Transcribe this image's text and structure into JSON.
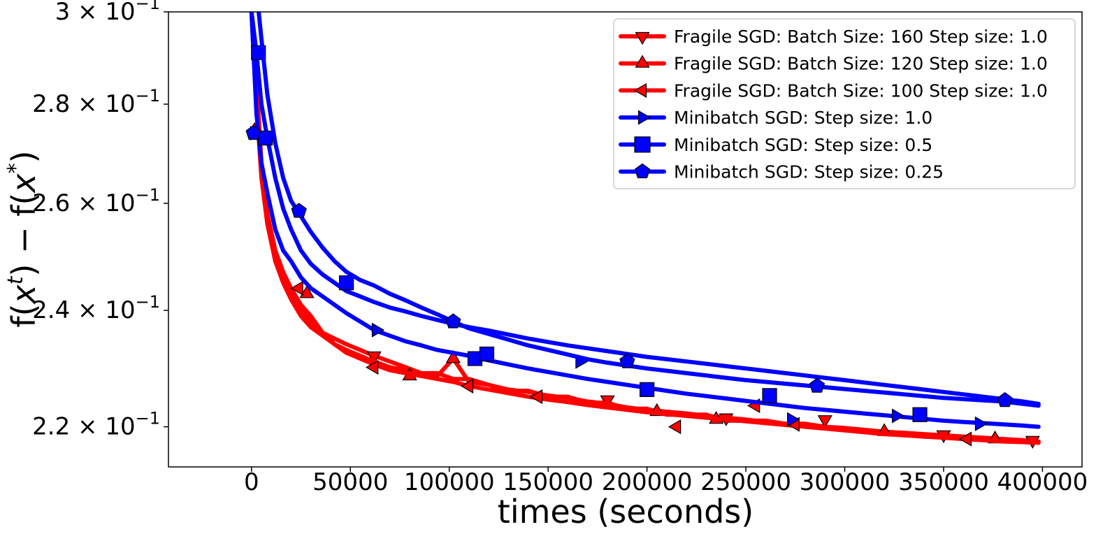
{
  "chart_data": {
    "type": "line",
    "title": "",
    "xlabel": "times (seconds)",
    "ylabel": "f(x^t) - f(x^*)",
    "ylabel_parts": {
      "f1": "f(",
      "x1": "x",
      "t": "t",
      "mid": ") − f(",
      "x2": "x",
      "star": "*",
      "close": ")"
    },
    "y_scale": "log",
    "xlim": [
      -42000,
      420000
    ],
    "ylim": [
      0.2135,
      0.3
    ],
    "x_ticks": [
      0,
      50000,
      100000,
      150000,
      200000,
      250000,
      300000,
      350000,
      400000
    ],
    "x_tick_labels": [
      "0",
      "50000",
      "100000",
      "150000",
      "200000",
      "250000",
      "300000",
      "350000",
      "400000"
    ],
    "y_ticks": [
      {
        "value": 0.3,
        "mant": "3",
        "times": "×",
        "base": "10",
        "exp": "−1"
      },
      {
        "value": 0.28,
        "mant": "2.8",
        "times": "×",
        "base": "10",
        "exp": "−1"
      },
      {
        "value": 0.26,
        "mant": "2.6",
        "times": "×",
        "base": "10",
        "exp": "−1"
      },
      {
        "value": 0.24,
        "mant": "2.4",
        "times": "×",
        "base": "10",
        "exp": "−1"
      },
      {
        "value": 0.22,
        "mant": "2.2",
        "times": "×",
        "base": "10",
        "exp": "−1"
      }
    ],
    "grid": false,
    "legend_position": "top-right",
    "series": [
      {
        "name": "Fragile SGD: Batch Size: 160 Step size: 1.0",
        "color": "#ff0000",
        "marker": "triangle-down",
        "x": [
          0,
          2500,
          5000,
          8000,
          12000,
          16000,
          20000,
          25000,
          30000,
          36000,
          42000,
          48000,
          55000,
          62000,
          70000,
          78000,
          86000,
          94000,
          102000,
          110000,
          120000,
          130000,
          140000,
          150000,
          160000,
          170000,
          180000,
          190000,
          200000,
          210000,
          220000,
          230000,
          240000,
          250000,
          260000,
          270000,
          280000,
          290000,
          300000,
          310000,
          320000,
          330000,
          340000,
          350000,
          360000,
          370000,
          380000,
          390000,
          398000
        ],
        "values": [
          0.3,
          0.285,
          0.268,
          0.258,
          0.251,
          0.247,
          0.244,
          0.241,
          0.239,
          0.236,
          0.235,
          0.234,
          0.233,
          0.232,
          0.231,
          0.23,
          0.229,
          0.229,
          0.228,
          0.228,
          0.227,
          0.226,
          0.226,
          0.225,
          0.225,
          0.224,
          0.224,
          0.223,
          0.223,
          0.222,
          0.222,
          0.222,
          0.221,
          0.221,
          0.221,
          0.2205,
          0.2205,
          0.22,
          0.2198,
          0.2195,
          0.2192,
          0.219,
          0.2188,
          0.2186,
          0.2184,
          0.2182,
          0.218,
          0.2178,
          0.2176
        ],
        "marker_points": [
          [
            62000,
            0.232
          ],
          [
            180000,
            0.2245
          ],
          [
            240000,
            0.2215
          ],
          [
            290000,
            0.2212
          ],
          [
            350000,
            0.2187
          ],
          [
            395000,
            0.2178
          ]
        ]
      },
      {
        "name": "Fragile SGD: Batch Size: 120 Step size: 1.0",
        "color": "#ff0000",
        "marker": "triangle-up",
        "x": [
          0,
          2500,
          5000,
          8000,
          12000,
          16000,
          20000,
          25000,
          30000,
          36000,
          42000,
          48000,
          55000,
          62000,
          70000,
          78000,
          86000,
          94000,
          102000,
          110000,
          120000,
          130000,
          140000,
          150000,
          160000,
          170000,
          180000,
          190000,
          200000,
          210000,
          220000,
          230000,
          240000,
          250000,
          260000,
          270000,
          280000,
          290000,
          300000,
          310000,
          320000,
          330000,
          340000,
          350000,
          360000,
          370000,
          380000,
          390000,
          398000
        ],
        "values": [
          0.3,
          0.282,
          0.266,
          0.257,
          0.25,
          0.246,
          0.243,
          0.24,
          0.238,
          0.236,
          0.234,
          0.233,
          0.232,
          0.231,
          0.23,
          0.2295,
          0.229,
          0.2285,
          0.2315,
          0.2275,
          0.227,
          0.2262,
          0.2258,
          0.2252,
          0.2248,
          0.2242,
          0.2238,
          0.2232,
          0.2228,
          0.2225,
          0.2222,
          0.2218,
          0.2215,
          0.2212,
          0.2208,
          0.2205,
          0.2202,
          0.2199,
          0.2196,
          0.2193,
          0.219,
          0.2188,
          0.2186,
          0.2184,
          0.2182,
          0.218,
          0.2178,
          0.2176,
          0.2174
        ],
        "marker_points": [
          [
            1500,
            0.2745
          ],
          [
            28000,
            0.243
          ],
          [
            80000,
            0.2285
          ],
          [
            102000,
            0.2315
          ],
          [
            205000,
            0.2225
          ],
          [
            235000,
            0.2212
          ],
          [
            320000,
            0.2192
          ],
          [
            376000,
            0.218
          ]
        ]
      },
      {
        "name": "Fragile SGD: Batch Size: 100 Step size: 1.0",
        "color": "#ff0000",
        "marker": "triangle-left",
        "x": [
          0,
          2500,
          5000,
          8000,
          12000,
          16000,
          20000,
          25000,
          30000,
          36000,
          42000,
          48000,
          55000,
          62000,
          70000,
          78000,
          86000,
          94000,
          102000,
          110000,
          120000,
          130000,
          140000,
          150000,
          160000,
          170000,
          180000,
          190000,
          200000,
          210000,
          220000,
          230000,
          240000,
          250000,
          260000,
          270000,
          280000,
          290000,
          300000,
          310000,
          320000,
          330000,
          340000,
          350000,
          360000,
          370000,
          380000,
          390000,
          398000
        ],
        "values": [
          0.3,
          0.28,
          0.265,
          0.256,
          0.249,
          0.245,
          0.242,
          0.239,
          0.237,
          0.2355,
          0.234,
          0.2325,
          0.2315,
          0.2305,
          0.2295,
          0.229,
          0.2285,
          0.228,
          0.2275,
          0.2268,
          0.2262,
          0.2256,
          0.225,
          0.2245,
          0.2241,
          0.2236,
          0.2232,
          0.2228,
          0.2224,
          0.2221,
          0.2218,
          0.2215,
          0.2212,
          0.2209,
          0.2206,
          0.2203,
          0.22,
          0.2197,
          0.2194,
          0.2191,
          0.2188,
          0.2186,
          0.2184,
          0.2182,
          0.218,
          0.2178,
          0.2176,
          0.2175,
          0.2174
        ],
        "marker_points": [
          [
            24000,
            0.244
          ],
          [
            62000,
            0.23
          ],
          [
            110000,
            0.2268
          ],
          [
            145000,
            0.225
          ],
          [
            215000,
            0.22
          ],
          [
            255000,
            0.2235
          ],
          [
            275000,
            0.2204
          ],
          [
            362000,
            0.218
          ]
        ]
      },
      {
        "name": "Minibatch SGD: Step size: 1.0",
        "color": "#0000ff",
        "marker": "triangle-right",
        "x": [
          0,
          2500,
          5000,
          8000,
          12000,
          16000,
          20000,
          25000,
          30000,
          36000,
          42000,
          48000,
          55000,
          62000,
          70000,
          78000,
          86000,
          94000,
          102000,
          110000,
          120000,
          130000,
          140000,
          150000,
          160000,
          170000,
          180000,
          190000,
          200000,
          210000,
          220000,
          230000,
          240000,
          250000,
          260000,
          270000,
          280000,
          290000,
          300000,
          310000,
          320000,
          330000,
          340000,
          350000,
          360000,
          370000,
          380000,
          390000,
          398000
        ],
        "values": [
          0.3,
          0.278,
          0.268,
          0.262,
          0.255,
          0.251,
          0.249,
          0.246,
          0.244,
          0.2425,
          0.241,
          0.2395,
          0.238,
          0.2365,
          0.2355,
          0.2345,
          0.2338,
          0.233,
          0.2325,
          0.232,
          0.2312,
          0.2305,
          0.2298,
          0.2292,
          0.2286,
          0.228,
          0.2275,
          0.227,
          0.2265,
          0.226,
          0.2255,
          0.2251,
          0.2247,
          0.2243,
          0.2239,
          0.2235,
          0.2231,
          0.2228,
          0.2225,
          0.2222,
          0.2219,
          0.2216,
          0.2213,
          0.221,
          0.2208,
          0.2206,
          0.2204,
          0.2202,
          0.22
        ],
        "marker_points": [
          [
            1500,
            0.274
          ],
          [
            63000,
            0.2365
          ],
          [
            166000,
            0.231
          ],
          [
            273000,
            0.2212
          ],
          [
            326000,
            0.2218
          ],
          [
            368000,
            0.2205
          ]
        ]
      },
      {
        "name": "Minibatch SGD: Step size: 0.5",
        "color": "#0000ff",
        "marker": "square",
        "x": [
          0,
          2500,
          5000,
          8000,
          12000,
          16000,
          20000,
          25000,
          30000,
          36000,
          42000,
          48000,
          55000,
          62000,
          70000,
          78000,
          86000,
          94000,
          102000,
          110000,
          120000,
          130000,
          140000,
          150000,
          160000,
          170000,
          180000,
          190000,
          200000,
          210000,
          220000,
          230000,
          240000,
          250000,
          260000,
          270000,
          280000,
          290000,
          300000,
          310000,
          320000,
          330000,
          340000,
          350000,
          360000,
          370000,
          380000,
          390000,
          398000
        ],
        "values": [
          0.3,
          0.291,
          0.28,
          0.273,
          0.265,
          0.259,
          0.255,
          0.251,
          0.2485,
          0.2465,
          0.245,
          0.2435,
          0.2425,
          0.2415,
          0.2405,
          0.2398,
          0.239,
          0.2383,
          0.2376,
          0.237,
          0.2364,
          0.2357,
          0.235,
          0.2344,
          0.2338,
          0.2333,
          0.2328,
          0.2323,
          0.2318,
          0.2314,
          0.231,
          0.2306,
          0.2302,
          0.2298,
          0.2294,
          0.229,
          0.2286,
          0.2282,
          0.2278,
          0.2274,
          0.227,
          0.2266,
          0.2262,
          0.2258,
          0.2254,
          0.225,
          0.2246,
          0.2242,
          0.2238
        ],
        "marker_points": [
          [
            3500,
            0.291
          ],
          [
            7000,
            0.273
          ],
          [
            48000,
            0.245
          ],
          [
            113000,
            0.2315
          ],
          [
            119000,
            0.2323
          ],
          [
            200000,
            0.2262
          ],
          [
            262000,
            0.2252
          ],
          [
            338000,
            0.222
          ]
        ]
      },
      {
        "name": "Minibatch SGD: Step size: 0.25",
        "color": "#0000ff",
        "marker": "pentagon",
        "x": [
          0,
          2500,
          5000,
          8000,
          12000,
          16000,
          20000,
          25000,
          30000,
          36000,
          42000,
          48000,
          55000,
          62000,
          70000,
          78000,
          86000,
          94000,
          102000,
          110000,
          120000,
          130000,
          140000,
          150000,
          160000,
          170000,
          180000,
          190000,
          200000,
          210000,
          220000,
          230000,
          240000,
          250000,
          260000,
          270000,
          280000,
          290000,
          300000,
          310000,
          320000,
          330000,
          340000,
          350000,
          360000,
          370000,
          380000,
          390000,
          398000
        ],
        "values": [
          0.3,
          0.305,
          0.294,
          0.282,
          0.272,
          0.265,
          0.2605,
          0.2575,
          0.2545,
          0.2515,
          0.249,
          0.247,
          0.2455,
          0.2445,
          0.243,
          0.2418,
          0.2405,
          0.2393,
          0.238,
          0.2368,
          0.2358,
          0.2348,
          0.2338,
          0.233,
          0.2322,
          0.2314,
          0.2308,
          0.2303,
          0.2298,
          0.2294,
          0.229,
          0.2286,
          0.2282,
          0.2278,
          0.2275,
          0.2272,
          0.2269,
          0.2266,
          0.2263,
          0.226,
          0.2257,
          0.2254,
          0.2251,
          0.2248,
          0.2246,
          0.2244,
          0.2242,
          0.2238,
          0.2235
        ],
        "marker_points": [
          [
            1000,
            0.274
          ],
          [
            24000,
            0.2585
          ],
          [
            102000,
            0.238
          ],
          [
            190000,
            0.231
          ],
          [
            286000,
            0.2268
          ],
          [
            381000,
            0.2244
          ]
        ]
      }
    ]
  }
}
